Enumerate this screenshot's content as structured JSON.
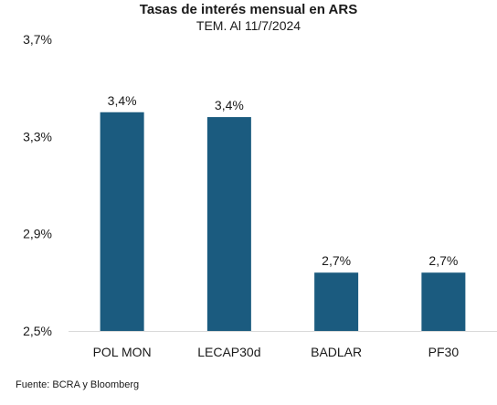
{
  "chart_data": {
    "type": "bar",
    "title": "Tasas de interés mensual en ARS",
    "subtitle": "TEM. Al 11/7/2024",
    "categories": [
      "POL MON",
      "LECAP30d",
      "BADLAR",
      "PF30"
    ],
    "values": [
      3.4,
      3.38,
      2.74,
      2.74
    ],
    "data_labels": [
      "3,4%",
      "3,4%",
      "2,7%",
      "2,7%"
    ],
    "ylim": [
      2.5,
      3.7
    ],
    "yticks": [
      2.5,
      2.9,
      3.3,
      3.7
    ],
    "ytick_labels": [
      "2,5%",
      "2,9%",
      "3,3%",
      "3,7%"
    ],
    "xlabel": "",
    "ylabel": "",
    "grid": false,
    "bar_color": "#1b5b7f",
    "source": "Fuente: BCRA y Bloomberg"
  }
}
